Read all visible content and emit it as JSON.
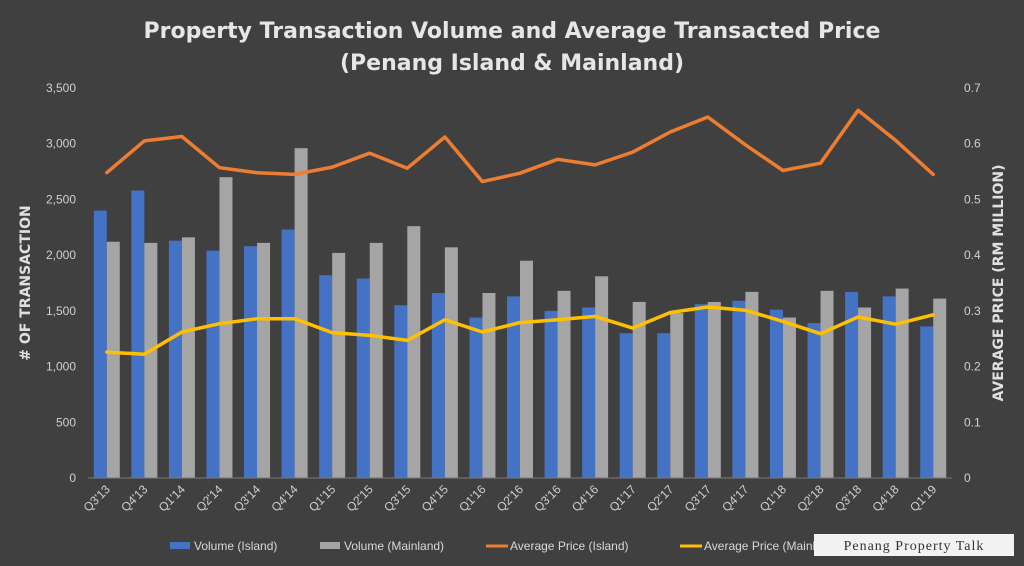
{
  "chart_data": {
    "type": "bar",
    "title_line1": "Property Transaction Volume and Average Transacted Price",
    "title_line2": "(Penang Island & Mainland)",
    "ylabel": "# OF TRANSACTION",
    "y2label": "AVERAGE PRICE (RM MILLION)",
    "ylim": [
      0,
      3500
    ],
    "y2lim": [
      0,
      0.7
    ],
    "y_ticks": [
      "0",
      "500",
      "1,000",
      "1,500",
      "2,000",
      "2,500",
      "3,000",
      "3,500"
    ],
    "y2_ticks": [
      "0",
      "0.1",
      "0.2",
      "0.3",
      "0.4",
      "0.5",
      "0.6",
      "0.7"
    ],
    "grid": false,
    "legend_position": "bottom",
    "categories": [
      "Q3'13",
      "Q4'13",
      "Q1'14",
      "Q2'14",
      "Q3'14",
      "Q4'14",
      "Q1'15",
      "Q2'15",
      "Q3'15",
      "Q4'15",
      "Q1'16",
      "Q2'16",
      "Q3'16",
      "Q4'16",
      "Q1'17",
      "Q2'17",
      "Q3'17",
      "Q4'17",
      "Q1'18",
      "Q2'18",
      "Q3'18",
      "Q4'18",
      "Q1'19"
    ],
    "series": [
      {
        "name": "Volume (Island)",
        "type": "bar",
        "axis": "left",
        "color": "#4472c4",
        "values": [
          2400,
          2580,
          2130,
          2040,
          2080,
          2230,
          1820,
          1790,
          1550,
          1660,
          1440,
          1630,
          1500,
          1530,
          1300,
          1300,
          1560,
          1590,
          1510,
          1390,
          1670,
          1630,
          1360
        ]
      },
      {
        "name": "Volume (Mainland)",
        "type": "bar",
        "axis": "left",
        "color": "#a5a5a5",
        "values": [
          2120,
          2110,
          2160,
          2700,
          2110,
          2960,
          2020,
          2110,
          2260,
          2070,
          1660,
          1950,
          1680,
          1810,
          1580,
          1480,
          1580,
          1670,
          1440,
          1680,
          1530,
          1700,
          1610
        ]
      },
      {
        "name": "Average Price (Island)",
        "type": "line",
        "axis": "right",
        "color": "#ed7d31",
        "values": [
          0.548,
          0.605,
          0.613,
          0.557,
          0.548,
          0.545,
          0.558,
          0.583,
          0.556,
          0.612,
          0.532,
          0.547,
          0.572,
          0.562,
          0.585,
          0.621,
          0.648,
          0.598,
          0.552,
          0.565,
          0.66,
          0.606,
          0.545
        ]
      },
      {
        "name": "Average Price (Mainland)",
        "type": "line",
        "axis": "right",
        "color": "#ffc000",
        "values": [
          0.226,
          0.222,
          0.262,
          0.277,
          0.286,
          0.286,
          0.261,
          0.256,
          0.247,
          0.284,
          0.262,
          0.279,
          0.284,
          0.29,
          0.269,
          0.297,
          0.307,
          0.301,
          0.281,
          0.259,
          0.289,
          0.276,
          0.293
        ]
      }
    ]
  },
  "watermark": "Penang Property Talk"
}
